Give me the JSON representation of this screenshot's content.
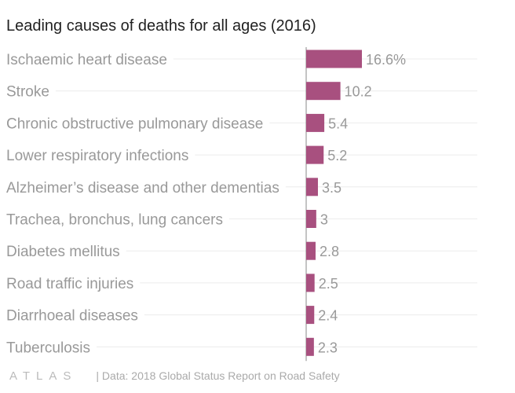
{
  "chart_data": {
    "type": "bar",
    "orientation": "horizontal",
    "title": "Leading causes of deaths for all ages (2016)",
    "categories": [
      "Ischaemic heart disease",
      "Stroke",
      "Chronic obstructive pulmonary disease",
      "Lower respiratory infections",
      "Alzheimer’s disease and other dementias",
      "Trachea, bronchus, lung cancers",
      "Diabetes mellitus",
      "Road traffic injuries",
      "Diarrhoeal diseases",
      "Tuberculosis"
    ],
    "values": [
      16.6,
      10.2,
      5.4,
      5.2,
      3.5,
      3,
      2.8,
      2.5,
      2.4,
      2.3
    ],
    "value_labels": [
      "16.6%",
      "10.2",
      "5.4",
      "5.2",
      "3.5",
      "3",
      "2.8",
      "2.5",
      "2.4",
      "2.3"
    ],
    "xlim": [
      0,
      16.6
    ],
    "grid": true,
    "bar_color": "#a8507f"
  },
  "footer": {
    "logo": "ATLAS",
    "source": "| Data: 2018 Global Status Report on Road Safety"
  }
}
